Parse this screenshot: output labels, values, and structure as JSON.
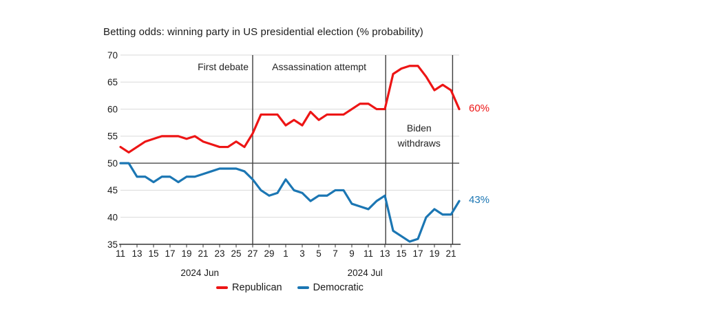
{
  "title": "Betting odds: winning party in US presidential election (% probability)",
  "chart_data": {
    "type": "line",
    "x_categories": [
      "Jun 11",
      "Jun 12",
      "Jun 13",
      "Jun 14",
      "Jun 15",
      "Jun 16",
      "Jun 17",
      "Jun 18",
      "Jun 19",
      "Jun 20",
      "Jun 21",
      "Jun 22",
      "Jun 23",
      "Jun 24",
      "Jun 25",
      "Jun 26",
      "Jun 27",
      "Jun 28",
      "Jun 29",
      "Jun 30",
      "Jul 1",
      "Jul 2",
      "Jul 3",
      "Jul 4",
      "Jul 5",
      "Jul 6",
      "Jul 7",
      "Jul 8",
      "Jul 9",
      "Jul 10",
      "Jul 11",
      "Jul 12",
      "Jul 13",
      "Jul 14",
      "Jul 15",
      "Jul 16",
      "Jul 17",
      "Jul 18",
      "Jul 19",
      "Jul 20",
      "Jul 21",
      "Jul 22"
    ],
    "series": [
      {
        "name": "Republican",
        "color": "#ed1515",
        "end_label": "60%",
        "values": [
          53,
          52,
          53,
          54,
          54.5,
          55,
          55,
          55,
          54.5,
          55,
          54,
          53.5,
          53,
          53,
          54,
          53,
          55.5,
          59,
          59,
          59,
          57,
          58,
          57,
          59.5,
          58,
          59,
          59,
          59,
          60,
          61,
          61,
          60,
          60,
          66.5,
          67.5,
          68,
          68,
          66,
          63.5,
          64.5,
          63.5,
          60
        ]
      },
      {
        "name": "Democratic",
        "color": "#1b76b3",
        "end_label": "43%",
        "values": [
          50,
          50,
          47.5,
          47.5,
          46.5,
          47.5,
          47.5,
          46.5,
          47.5,
          47.5,
          48,
          48.5,
          49,
          49,
          49,
          48.5,
          47,
          45,
          44,
          44.5,
          47,
          45,
          44.5,
          43,
          44,
          44,
          45,
          45,
          42.5,
          42,
          41.5,
          43,
          44,
          37.5,
          36.5,
          35.5,
          36,
          40,
          41.5,
          40.5,
          40.5,
          43
        ]
      }
    ],
    "y_ticks": [
      35,
      40,
      45,
      50,
      55,
      60,
      65,
      70
    ],
    "ylim": [
      35,
      70
    ],
    "reference_line_y": 50,
    "x_tick_days": [
      0,
      2,
      4,
      6,
      8,
      10,
      12,
      14,
      16,
      18,
      20,
      22,
      24,
      26,
      28,
      30,
      32,
      34,
      36,
      38,
      40
    ],
    "x_tick_labels": [
      "11",
      "13",
      "15",
      "17",
      "19",
      "21",
      "23",
      "25",
      "27",
      "29",
      "1",
      "3",
      "5",
      "7",
      "9",
      "11",
      "13",
      "15",
      "17",
      "19",
      "21"
    ],
    "month_labels": [
      {
        "text": "2024 Jun",
        "day": 9.6
      },
      {
        "text": "2024 Jul",
        "day": 29.6
      }
    ],
    "annotations": [
      {
        "text": "First debate",
        "line_day": 16
      },
      {
        "text": "Assassination attempt",
        "line_day": 32.1
      },
      {
        "text": "Biden withdraws",
        "line_day": 40.2
      }
    ],
    "grid": "horizontal",
    "legend_position": "bottom-center"
  },
  "legend": {
    "items": [
      {
        "label": "Republican",
        "color": "#ed1515"
      },
      {
        "label": "Democratic",
        "color": "#1b76b3"
      }
    ]
  }
}
